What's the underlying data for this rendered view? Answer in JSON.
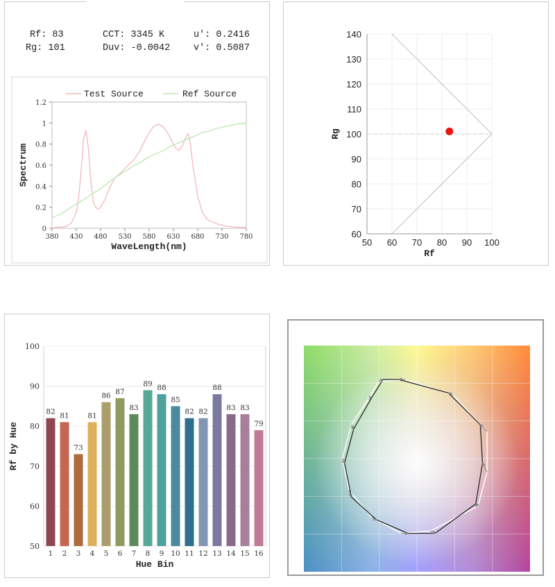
{
  "metrics": {
    "rf": "Rf: 83",
    "rg": "Rg: 101",
    "cct": "CCT: 3345 K",
    "duv": "Duv: -0.0042",
    "u": "u': 0.2416",
    "v": "v': 0.5087"
  },
  "colors": {
    "test_source": "#f4b8b8",
    "ref_source": "#b9e8b0",
    "marker": "#ee1111"
  },
  "chart_data": [
    {
      "type": "line",
      "xlabel": "WaveLength(nm)",
      "ylabel": "Spectrum",
      "xlim": [
        380,
        780
      ],
      "ylim": [
        0,
        1.2
      ],
      "x_ticks": [
        "380",
        "430",
        "480",
        "530",
        "580",
        "630",
        "680",
        "730",
        "780"
      ],
      "y_ticks": [
        "0",
        "0.2",
        "0.4",
        "0.6",
        "0.8",
        "1",
        "1.2"
      ],
      "legend_position": "top",
      "x": [
        380,
        390,
        400,
        410,
        420,
        430,
        435,
        440,
        445,
        450,
        455,
        460,
        465,
        470,
        475,
        480,
        490,
        500,
        510,
        520,
        530,
        540,
        550,
        560,
        570,
        580,
        590,
        600,
        610,
        620,
        630,
        635,
        640,
        645,
        650,
        655,
        660,
        665,
        670,
        680,
        690,
        700,
        720,
        740,
        760,
        780
      ],
      "series": [
        {
          "name": "Test Source",
          "values": [
            0,
            0.01,
            0.01,
            0.02,
            0.05,
            0.15,
            0.3,
            0.55,
            0.85,
            0.93,
            0.75,
            0.45,
            0.25,
            0.2,
            0.18,
            0.2,
            0.28,
            0.4,
            0.48,
            0.52,
            0.57,
            0.61,
            0.66,
            0.73,
            0.82,
            0.91,
            0.97,
            0.99,
            0.96,
            0.89,
            0.8,
            0.76,
            0.74,
            0.76,
            0.8,
            0.86,
            0.9,
            0.8,
            0.6,
            0.3,
            0.15,
            0.08,
            0.04,
            0.02,
            0.01,
            0.01
          ]
        },
        {
          "name": "Ref Source",
          "values": [
            0.1,
            0.12,
            0.14,
            0.17,
            0.2,
            0.23,
            0.24,
            0.26,
            0.27,
            0.29,
            0.3,
            0.32,
            0.33,
            0.35,
            0.36,
            0.38,
            0.41,
            0.45,
            0.48,
            0.51,
            0.54,
            0.57,
            0.6,
            0.62,
            0.65,
            0.68,
            0.7,
            0.72,
            0.74,
            0.77,
            0.79,
            0.8,
            0.81,
            0.82,
            0.83,
            0.84,
            0.85,
            0.86,
            0.87,
            0.89,
            0.91,
            0.92,
            0.95,
            0.97,
            0.99,
            1.0
          ]
        }
      ]
    },
    {
      "type": "scatter",
      "xlabel": "Rf",
      "ylabel": "Rg",
      "xlim": [
        50,
        100
      ],
      "ylim": [
        60,
        140
      ],
      "x_ticks": [
        "50",
        "60",
        "70",
        "80",
        "90",
        "100"
      ],
      "y_ticks": [
        "60",
        "70",
        "80",
        "90",
        "100",
        "110",
        "120",
        "130",
        "140"
      ],
      "points": [
        {
          "x": 83,
          "y": 101
        }
      ],
      "boundary": [
        {
          "x": 60,
          "y": 140
        },
        {
          "x": 100,
          "y": 100
        },
        {
          "x": 60,
          "y": 60
        }
      ],
      "reference_line_y": 100
    },
    {
      "type": "bar",
      "xlabel": "Hue Bin",
      "ylabel": "Rf by Hue",
      "ylim": [
        50,
        100
      ],
      "y_ticks": [
        "50",
        "60",
        "70",
        "80",
        "90",
        "100"
      ],
      "categories": [
        "1",
        "2",
        "3",
        "4",
        "5",
        "6",
        "7",
        "8",
        "9",
        "10",
        "11",
        "12",
        "13",
        "14",
        "15",
        "16"
      ],
      "values": [
        82,
        81,
        73,
        81,
        86,
        87,
        83,
        89,
        88,
        85,
        82,
        82,
        88,
        83,
        83,
        79
      ],
      "labels": [
        "82",
        "81",
        "73",
        "81",
        "86",
        "87",
        "83",
        "89",
        "88",
        "85",
        "82",
        "82",
        "88",
        "83",
        "83",
        "79"
      ],
      "bar_colors": [
        "#8f4651",
        "#c66552",
        "#ad6a3a",
        "#deb05b",
        "#ab9e6b",
        "#8e9b5f",
        "#5d8a5d",
        "#59a797",
        "#4ea19f",
        "#4b8a9c",
        "#2f6f8e",
        "#8395b5",
        "#7a79a0",
        "#8a6a88",
        "#a87f9a",
        "#c07a98"
      ]
    },
    {
      "type": "scatter",
      "description_free": true,
      "test_polygon": [
        [
          0.35,
          0.15
        ],
        [
          0.42,
          0.15
        ],
        [
          0.64,
          0.21
        ],
        [
          0.78,
          0.35
        ],
        [
          0.79,
          0.52
        ],
        [
          0.76,
          0.7
        ],
        [
          0.58,
          0.83
        ],
        [
          0.46,
          0.83
        ],
        [
          0.32,
          0.77
        ],
        [
          0.21,
          0.67
        ],
        [
          0.18,
          0.52
        ],
        [
          0.22,
          0.37
        ],
        [
          0.3,
          0.23
        ]
      ],
      "ref_polygon": [
        [
          0.33,
          0.16
        ],
        [
          0.45,
          0.15
        ],
        [
          0.66,
          0.22
        ],
        [
          0.81,
          0.38
        ],
        [
          0.81,
          0.56
        ],
        [
          0.77,
          0.71
        ],
        [
          0.56,
          0.82
        ],
        [
          0.43,
          0.83
        ],
        [
          0.3,
          0.76
        ],
        [
          0.2,
          0.64
        ],
        [
          0.17,
          0.5
        ],
        [
          0.21,
          0.35
        ],
        [
          0.29,
          0.23
        ]
      ]
    }
  ]
}
